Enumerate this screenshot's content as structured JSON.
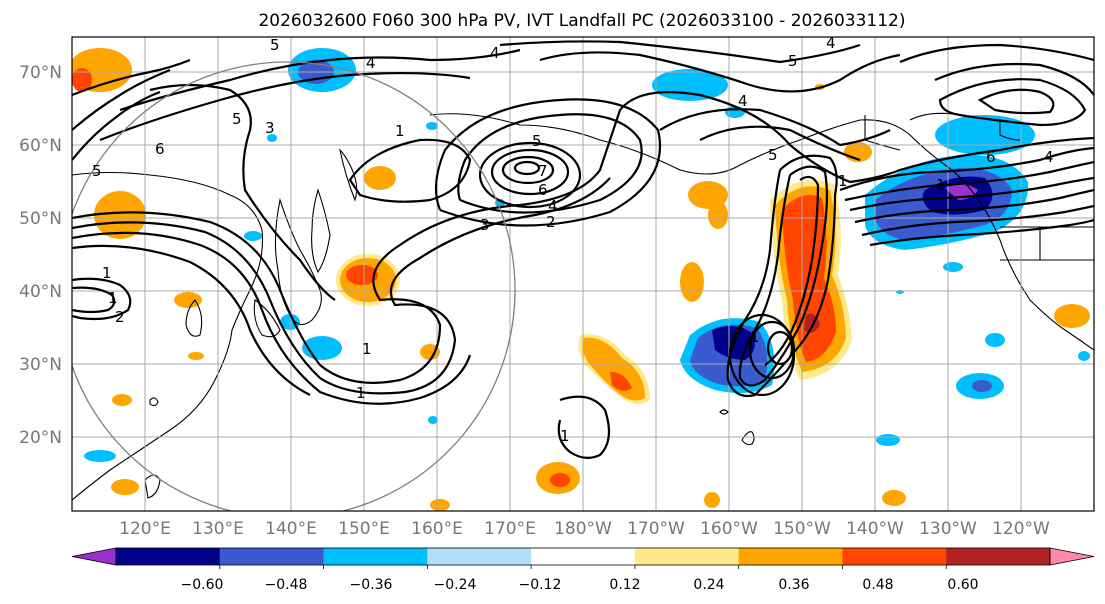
{
  "title": "2026032600 F060 300 hPa PV, IVT Landfall PC (2026033100 - 2026033112)",
  "lat_labels": [
    "70°N",
    "60°N",
    "50°N",
    "40°N",
    "30°N",
    "20°N"
  ],
  "lon_labels": [
    "120°E",
    "130°E",
    "140°E",
    "150°E",
    "160°E",
    "170°E",
    "180°W",
    "170°W",
    "160°W",
    "150°W",
    "140°W",
    "130°W",
    "120°W"
  ],
  "colorbar": {
    "ticks": [
      "−0.60",
      "−0.48",
      "−0.36",
      "−0.24",
      "−0.12",
      "0.12",
      "0.24",
      "0.36",
      "0.48",
      "0.60"
    ],
    "colors": [
      "#9932cc",
      "#00008b",
      "#3a5bd0",
      "#00bfff",
      "#b0e0f8",
      "#ffffff",
      "#ffe98a",
      "#ffa500",
      "#ff4500",
      "#b22222",
      "#ff88aa"
    ]
  },
  "contour_labels": {
    "a": "5",
    "b": "4",
    "c": "4",
    "d": "5",
    "e": "4",
    "f": "4",
    "g": "5",
    "h": "3",
    "i": "6",
    "j": "5",
    "k": "1",
    "l": "5",
    "m": "6",
    "n": "4",
    "o": "2",
    "p": "3",
    "q": "7",
    "r": "1",
    "s": "1",
    "t": "2",
    "u": "1",
    "v": "1",
    "w": "1",
    "x": "1",
    "y": "5",
    "z": "6",
    "aa": "4",
    "ab": "1",
    "ac": "1"
  }
}
